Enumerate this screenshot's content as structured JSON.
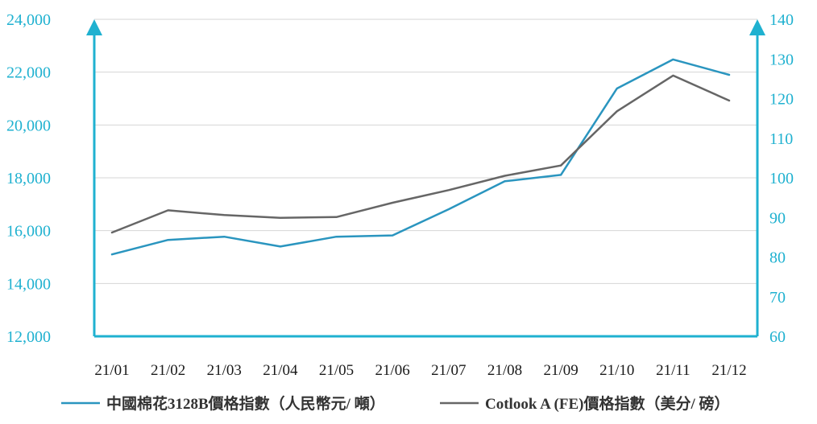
{
  "chart_data": {
    "type": "line",
    "categories": [
      "21/01",
      "21/02",
      "21/03",
      "21/04",
      "21/05",
      "21/06",
      "21/07",
      "21/08",
      "21/09",
      "21/10",
      "21/11",
      "21/12"
    ],
    "y_left": {
      "ylim": [
        12000,
        24000
      ],
      "ticks": [
        12000,
        14000,
        16000,
        18000,
        20000,
        22000,
        24000
      ],
      "tick_labels": [
        "12,000",
        "14,000",
        "16,000",
        "18,000",
        "20,000",
        "22,000",
        "24,000"
      ]
    },
    "y_right": {
      "ylim": [
        60,
        140
      ],
      "ticks": [
        60,
        70,
        80,
        90,
        100,
        110,
        120,
        130,
        140
      ],
      "tick_labels": [
        "60",
        "70",
        "80",
        "90",
        "100",
        "110",
        "120",
        "130",
        "140"
      ]
    },
    "grid": true,
    "legend_position": "bottom-center",
    "series": [
      {
        "name": "中國棉花3128B價格指數（人民幣元/ 噸）",
        "axis": "left",
        "color": "#2a95bf",
        "values": [
          15100,
          15650,
          15770,
          15400,
          15770,
          15820,
          16810,
          17870,
          18110,
          21380,
          22480,
          21900
        ]
      },
      {
        "name": "Cotlook A (FE)價格指數（美分/ 磅）",
        "axis": "right",
        "color": "#666666",
        "values": [
          86.2,
          91.8,
          90.6,
          89.9,
          90.1,
          93.7,
          96.9,
          100.5,
          103.1,
          116.8,
          125.8,
          119.5
        ]
      }
    ],
    "axis_color": "#1fb1d0",
    "tick_label_color": "#1fb1d0",
    "category_label_color": "#1a1a1a",
    "grid_color": "#d6d6d6"
  }
}
